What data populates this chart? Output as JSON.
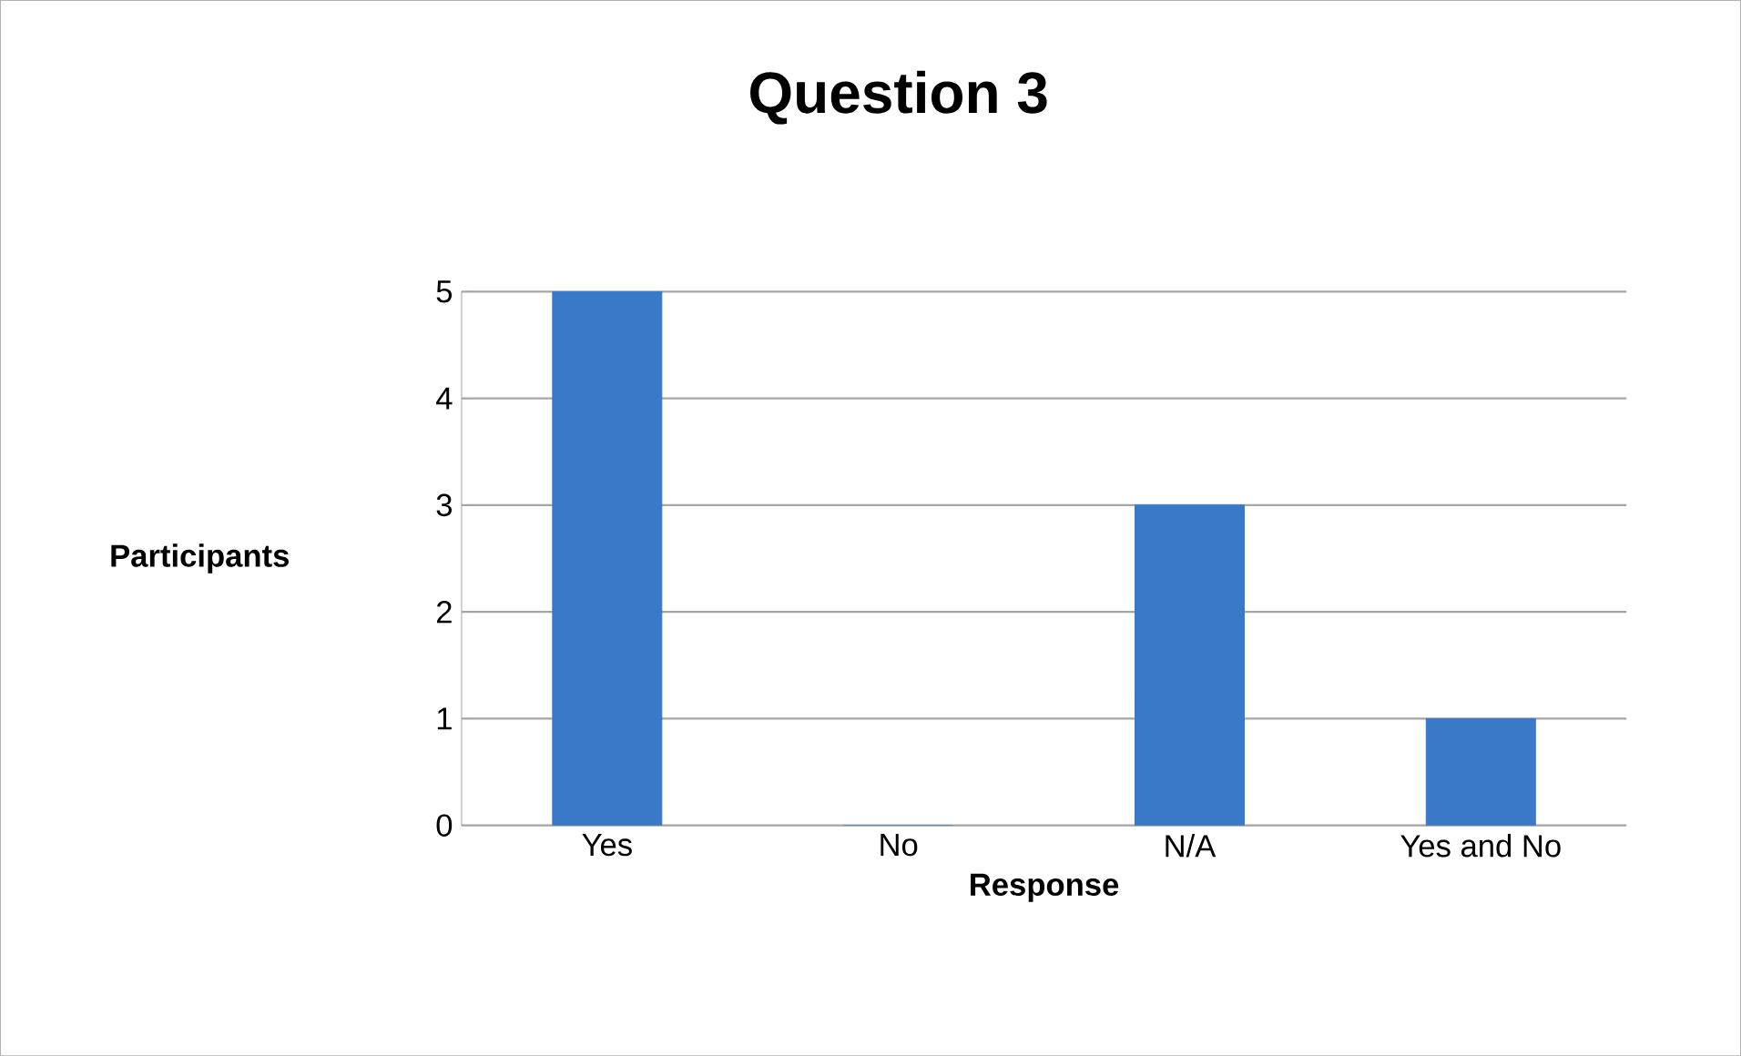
{
  "chart_data": {
    "type": "bar",
    "title": "Question 3",
    "xlabel": "Response",
    "ylabel": "Participants",
    "categories": [
      "Yes",
      "No",
      "N/A",
      "Yes and No"
    ],
    "values": [
      5,
      0,
      3,
      1
    ],
    "color": "#3a78c8",
    "ylim": [
      0,
      5
    ],
    "yticks": [
      0,
      1,
      2,
      3,
      4,
      5
    ],
    "grid": "y"
  }
}
